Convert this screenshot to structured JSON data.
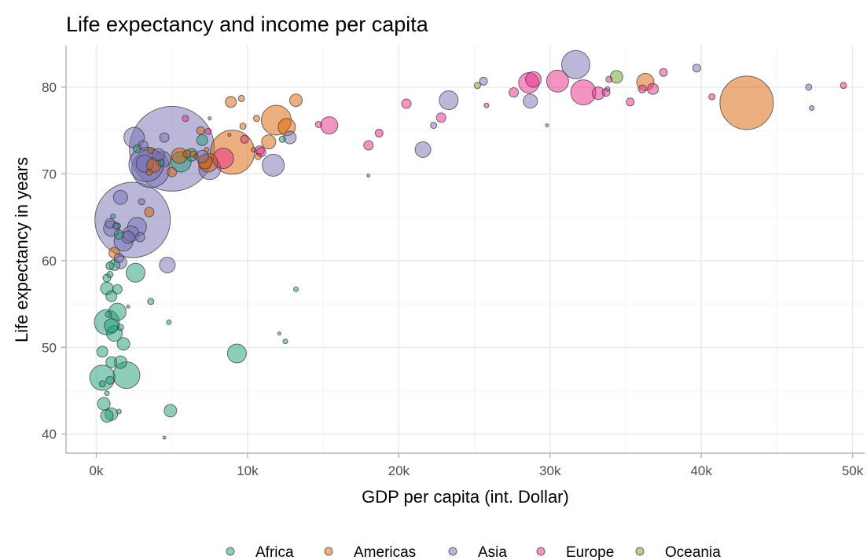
{
  "chart_data": {
    "type": "scatter",
    "title": "Life expectancy and income per capita",
    "xlabel": "GDP per capita (int. Dollar)",
    "ylabel": "Life expectancy in years",
    "xlim": [
      -2000,
      50800
    ],
    "ylim": [
      37.8,
      84.8
    ],
    "x_ticks": [
      0,
      10000,
      20000,
      30000,
      40000,
      50000
    ],
    "x_tick_labels": [
      "0k",
      "10k",
      "20k",
      "30k",
      "40k",
      "50k"
    ],
    "y_ticks": [
      40,
      50,
      60,
      70,
      80
    ],
    "y_tick_labels": [
      "40",
      "50",
      "60",
      "70",
      "80"
    ],
    "grid": true,
    "legend_position": "bottom",
    "size_encoding": "population",
    "colors": {
      "Africa": "#1b9e77",
      "Americas": "#d95f02",
      "Asia": "#7570b3",
      "Europe": "#e7298a",
      "Oceania": "#66a61e"
    },
    "legend": [
      "Africa",
      "Americas",
      "Asia",
      "Europe",
      "Oceania"
    ],
    "series": [
      {
        "name": "Africa",
        "points": [
          [
            4500,
            39.6,
            2
          ],
          [
            4900,
            42.7,
            8
          ],
          [
            1000,
            42.3,
            8
          ],
          [
            700,
            42.1,
            8
          ],
          [
            1500,
            42.6,
            3
          ],
          [
            500,
            43.5,
            8
          ],
          [
            400,
            46.5,
            16
          ],
          [
            900,
            46.2,
            5
          ],
          [
            1000,
            48.3,
            7
          ],
          [
            1600,
            48.3,
            8
          ],
          [
            2000,
            46.8,
            17
          ],
          [
            400,
            45.8,
            4
          ],
          [
            700,
            44.7,
            3
          ],
          [
            9300,
            49.3,
            12
          ],
          [
            400,
            49.5,
            7
          ],
          [
            700,
            52.9,
            16
          ],
          [
            1000,
            52.5,
            9
          ],
          [
            1200,
            51.6,
            10
          ],
          [
            1800,
            50.4,
            8
          ],
          [
            1600,
            52.3,
            4
          ],
          [
            800,
            53.8,
            4
          ],
          [
            1400,
            54.1,
            11
          ],
          [
            1000,
            55.9,
            7
          ],
          [
            3600,
            55.3,
            4
          ],
          [
            4800,
            52.9,
            3
          ],
          [
            2100,
            54.7,
            2
          ],
          [
            1400,
            56.7,
            6
          ],
          [
            700,
            56.8,
            8
          ],
          [
            700,
            58.0,
            5
          ],
          [
            900,
            58.4,
            4
          ],
          [
            2600,
            58.6,
            12
          ],
          [
            1200,
            59.5,
            7
          ],
          [
            900,
            59.4,
            5
          ],
          [
            13200,
            56.7,
            3
          ],
          [
            12500,
            50.7,
            3
          ],
          [
            12100,
            51.6,
            2
          ],
          [
            1500,
            63.0,
            6
          ],
          [
            1400,
            64.0,
            4
          ],
          [
            1100,
            65.1,
            3
          ],
          [
            2700,
            72.9,
            5
          ],
          [
            4300,
            71.3,
            4
          ],
          [
            5600,
            71.4,
            13
          ],
          [
            6300,
            72.2,
            8
          ],
          [
            7500,
            76.4,
            2
          ],
          [
            7000,
            73.9,
            7
          ],
          [
            12300,
            74.0,
            4
          ]
        ]
      },
      {
        "name": "Americas",
        "points": [
          [
            1200,
            60.9,
            7
          ],
          [
            3500,
            65.6,
            6
          ],
          [
            3500,
            70.2,
            4
          ],
          [
            3800,
            71.0,
            9
          ],
          [
            3600,
            72.7,
            4
          ],
          [
            5500,
            72.1,
            10
          ],
          [
            6400,
            72.3,
            4
          ],
          [
            7200,
            71.4,
            9
          ],
          [
            7400,
            71.3,
            12
          ],
          [
            6900,
            75.0,
            5
          ],
          [
            7300,
            72.8,
            3
          ],
          [
            9000,
            72.5,
            28
          ],
          [
            8900,
            78.3,
            7
          ],
          [
            9600,
            78.7,
            4
          ],
          [
            9700,
            75.5,
            4
          ],
          [
            10600,
            76.4,
            4
          ],
          [
            11900,
            76.2,
            19
          ],
          [
            12600,
            75.4,
            11
          ],
          [
            13200,
            78.5,
            8
          ],
          [
            11400,
            73.7,
            9
          ],
          [
            10700,
            72.0,
            4
          ],
          [
            10400,
            72.8,
            3
          ],
          [
            5000,
            70.2,
            6
          ],
          [
            6000,
            72.3,
            5
          ],
          [
            6600,
            72.0,
            3
          ],
          [
            36300,
            80.6,
            11
          ],
          [
            43000,
            78.2,
            34
          ]
        ]
      },
      {
        "name": "Asia",
        "points": [
          [
            5000,
            72.9,
            54
          ],
          [
            2400,
            64.7,
            48
          ],
          [
            2500,
            74.2,
            13
          ],
          [
            3100,
            73.3,
            6
          ],
          [
            3200,
            71.2,
            11
          ],
          [
            3300,
            71.1,
            22
          ],
          [
            3600,
            70.6,
            24
          ],
          [
            4100,
            72.2,
            8
          ],
          [
            4400,
            71.7,
            10
          ],
          [
            4500,
            74.2,
            6
          ],
          [
            2900,
            62.7,
            6
          ],
          [
            1800,
            62.2,
            12
          ],
          [
            1500,
            60.3,
            6
          ],
          [
            1600,
            59.8,
            8
          ],
          [
            2300,
            63.1,
            10
          ],
          [
            1600,
            67.3,
            9
          ],
          [
            1000,
            63.7,
            10
          ],
          [
            900,
            64.3,
            6
          ],
          [
            2700,
            63.9,
            12
          ],
          [
            2100,
            62.7,
            8
          ],
          [
            1300,
            64.0,
            4
          ],
          [
            4700,
            59.5,
            10
          ],
          [
            3000,
            66.8,
            4
          ],
          [
            7500,
            70.6,
            14
          ],
          [
            7000,
            72.0,
            8
          ],
          [
            11700,
            71.0,
            14
          ],
          [
            12800,
            74.2,
            8
          ],
          [
            18000,
            69.8,
            2
          ],
          [
            21600,
            72.8,
            10
          ],
          [
            22300,
            75.6,
            4
          ],
          [
            23300,
            78.5,
            12
          ],
          [
            25600,
            80.7,
            5
          ],
          [
            28700,
            78.4,
            9
          ],
          [
            31700,
            82.6,
            18
          ],
          [
            29800,
            75.6,
            2
          ],
          [
            39700,
            82.2,
            5
          ],
          [
            47100,
            80.0,
            4
          ],
          [
            47300,
            77.6,
            3
          ],
          [
            33800,
            79.8,
            3
          ],
          [
            8800,
            74.5,
            2
          ]
        ]
      },
      {
        "name": "Europe",
        "points": [
          [
            5900,
            76.4,
            4
          ],
          [
            7400,
            74.9,
            4
          ],
          [
            8400,
            71.8,
            13
          ],
          [
            9800,
            74.0,
            5
          ],
          [
            10800,
            72.7,
            6
          ],
          [
            10900,
            72.5,
            6
          ],
          [
            14700,
            75.7,
            4
          ],
          [
            15400,
            75.6,
            11
          ],
          [
            18000,
            73.3,
            6
          ],
          [
            18700,
            74.7,
            5
          ],
          [
            20500,
            78.1,
            6
          ],
          [
            22800,
            76.5,
            6
          ],
          [
            25800,
            77.9,
            3
          ],
          [
            27600,
            79.4,
            6
          ],
          [
            28600,
            80.5,
            13
          ],
          [
            28900,
            80.9,
            10
          ],
          [
            30500,
            80.7,
            14
          ],
          [
            32200,
            79.4,
            16
          ],
          [
            33200,
            79.3,
            8
          ],
          [
            33700,
            79.4,
            5
          ],
          [
            35300,
            78.3,
            5
          ],
          [
            36100,
            79.8,
            5
          ],
          [
            36800,
            79.8,
            7
          ],
          [
            37500,
            81.7,
            5
          ],
          [
            40700,
            78.9,
            4
          ],
          [
            49400,
            80.2,
            4
          ],
          [
            33900,
            80.9,
            4
          ]
        ]
      },
      {
        "name": "Oceania",
        "points": [
          [
            34400,
            81.2,
            8
          ],
          [
            25200,
            80.2,
            4
          ]
        ]
      }
    ]
  }
}
